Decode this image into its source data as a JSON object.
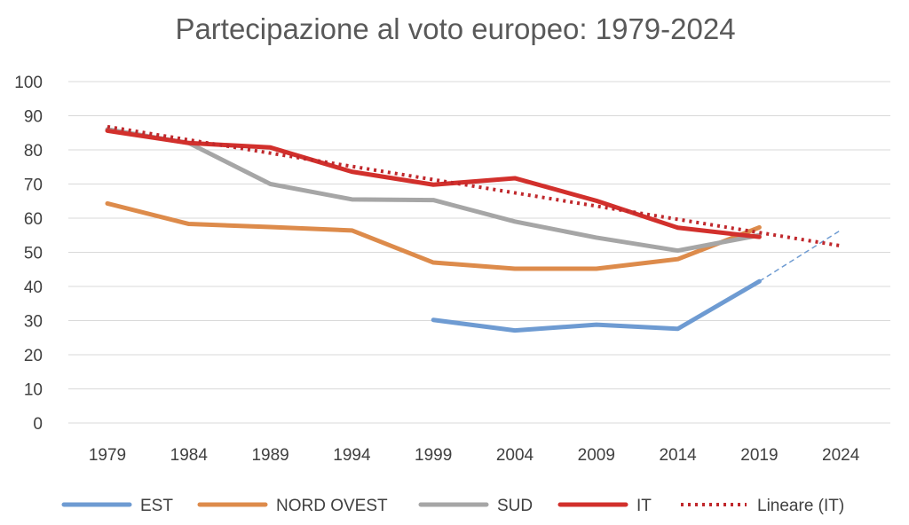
{
  "chart_data": {
    "type": "line",
    "title": "Partecipazione al voto europeo: 1979-2024",
    "categories": [
      "1979",
      "1984",
      "1989",
      "1994",
      "1999",
      "2004",
      "2009",
      "2014",
      "2019",
      "2024"
    ],
    "ylim": [
      0,
      100
    ],
    "yticks": [
      0,
      10,
      20,
      30,
      40,
      50,
      60,
      70,
      80,
      90,
      100
    ],
    "grid": true,
    "legend_position": "bottom",
    "series": [
      {
        "name": "EST",
        "color": "#6e9bd2",
        "values": [
          null,
          null,
          null,
          null,
          30.2,
          27.1,
          28.8,
          27.6,
          41.5,
          null
        ],
        "extension": {
          "from": 41.5,
          "to": 56.5,
          "color": "#6e9bd2",
          "style": "dashed"
        }
      },
      {
        "name": "NORD OVEST",
        "color": "#dd8b4b",
        "values": [
          64.3,
          58.3,
          57.4,
          56.4,
          47.0,
          45.2,
          45.2,
          48.0,
          57.3,
          null
        ]
      },
      {
        "name": "SUD",
        "color": "#a6a6a6",
        "values": [
          86.0,
          82.0,
          70.0,
          65.5,
          65.3,
          59.0,
          54.3,
          50.5,
          55.0,
          null
        ]
      },
      {
        "name": "IT",
        "color": "#d2302c",
        "values": [
          85.6,
          82.0,
          80.7,
          73.6,
          69.8,
          71.7,
          65.1,
          57.2,
          54.5,
          null
        ]
      },
      {
        "name": "Lineare (IT)",
        "color": "#c0282c",
        "style": "dotted",
        "from": 86.8,
        "to": 51.9
      }
    ]
  }
}
